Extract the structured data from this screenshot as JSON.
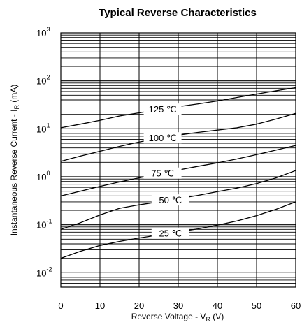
{
  "chart_data": {
    "type": "line",
    "title": "Typical Reverse Characteristics",
    "xlabel": {
      "main": "Reverse Voltage - V",
      "sub": "R",
      "suffix": " (V)"
    },
    "ylabel": {
      "main": "Instantaneous Reverse Current - I",
      "sub": "R",
      "suffix": " (mA)"
    },
    "xlim": [
      0,
      60
    ],
    "ylim": [
      0.005,
      1000
    ],
    "yscale": "log",
    "grid": true,
    "legend": "none",
    "x_ticks": [
      "0",
      "10",
      "20",
      "30",
      "40",
      "50",
      "60"
    ],
    "y_ticks": [
      {
        "base": "10",
        "exp": "-2",
        "value": 0.01
      },
      {
        "base": "10",
        "exp": "-1",
        "value": 0.1
      },
      {
        "base": "10",
        "exp": "0",
        "value": 1
      },
      {
        "base": "10",
        "exp": "1",
        "value": 10
      },
      {
        "base": "10",
        "exp": "2",
        "value": 100
      },
      {
        "base": "10",
        "exp": "3",
        "value": 1000
      }
    ],
    "x": [
      0,
      5,
      10,
      15,
      20,
      25,
      30,
      35,
      40,
      45,
      50,
      55,
      60
    ],
    "series": [
      {
        "name": "125 ℃",
        "label_at": 26,
        "values": [
          10.5,
          12.5,
          15,
          18.5,
          21.5,
          25,
          29,
          33,
          38,
          45,
          53,
          62,
          72
        ]
      },
      {
        "name": "100 ℃",
        "label_at": 26,
        "values": [
          2.1,
          2.7,
          3.4,
          4.3,
          5.3,
          6.3,
          7.4,
          8.4,
          9.4,
          10.5,
          12.5,
          16,
          21
        ]
      },
      {
        "name": "75 ℃",
        "label_at": 26,
        "values": [
          0.4,
          0.5,
          0.63,
          0.78,
          0.95,
          1.15,
          1.38,
          1.65,
          1.95,
          2.35,
          2.9,
          3.6,
          4.5
        ]
      },
      {
        "name": "50 ℃",
        "label_at": 28,
        "values": [
          0.08,
          0.11,
          0.16,
          0.22,
          0.26,
          0.3,
          0.35,
          0.41,
          0.49,
          0.58,
          0.72,
          0.95,
          1.35
        ]
      },
      {
        "name": "25 ℃",
        "label_at": 28,
        "values": [
          0.02,
          0.028,
          0.037,
          0.045,
          0.053,
          0.061,
          0.071,
          0.082,
          0.098,
          0.12,
          0.155,
          0.21,
          0.3
        ]
      }
    ]
  }
}
